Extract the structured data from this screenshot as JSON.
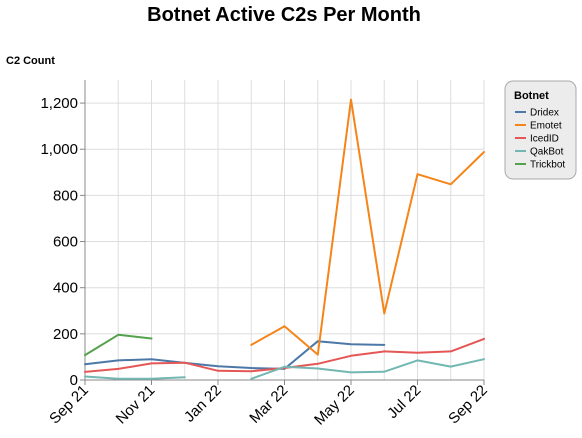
{
  "chart_data": {
    "type": "line",
    "title": "Botnet Active C2s Per Month",
    "xlabel": "",
    "ylabel": "C2 Count",
    "x": [
      "Sep 21",
      "Oct 21",
      "Nov 21",
      "Dec 21",
      "Jan 22",
      "Feb 22",
      "Mar 22",
      "Apr 22",
      "May 22",
      "Jun 22",
      "Jul 22",
      "Aug 22",
      "Sep 22"
    ],
    "x_tick_labels": [
      "Sep 21",
      "Nov 21",
      "Jan 22",
      "Mar 22",
      "May 22",
      "Jul 22",
      "Sep 22"
    ],
    "ylim": [
      0,
      1300
    ],
    "y_ticks": [
      0,
      200,
      400,
      600,
      800,
      1000,
      1200
    ],
    "y_tick_labels": [
      "0",
      "200",
      "400",
      "600",
      "800",
      "1,000",
      "1,200"
    ],
    "grid": true,
    "legend": {
      "title": "Botnet",
      "position": "top-right"
    },
    "series": [
      {
        "name": "Dridex",
        "color": "#4c78a8",
        "values": [
          68,
          85,
          90,
          74,
          60,
          52,
          48,
          168,
          155,
          152,
          null,
          null,
          null
        ]
      },
      {
        "name": "Emotet",
        "color": "#f58518",
        "values": [
          null,
          null,
          null,
          null,
          null,
          152,
          233,
          110,
          1215,
          288,
          892,
          848,
          988
        ]
      },
      {
        "name": "IcedID",
        "color": "#e45756",
        "values": [
          35,
          48,
          72,
          75,
          40,
          38,
          52,
          70,
          105,
          124,
          118,
          124,
          178
        ]
      },
      {
        "name": "QakBot",
        "color": "#72b7b2",
        "values": [
          15,
          5,
          5,
          12,
          null,
          5,
          57,
          50,
          33,
          36,
          85,
          58,
          90
        ]
      },
      {
        "name": "Trickbot",
        "color": "#54a24b",
        "values": [
          108,
          196,
          180,
          null,
          null,
          null,
          null,
          null,
          null,
          null,
          null,
          null,
          null
        ]
      }
    ]
  }
}
